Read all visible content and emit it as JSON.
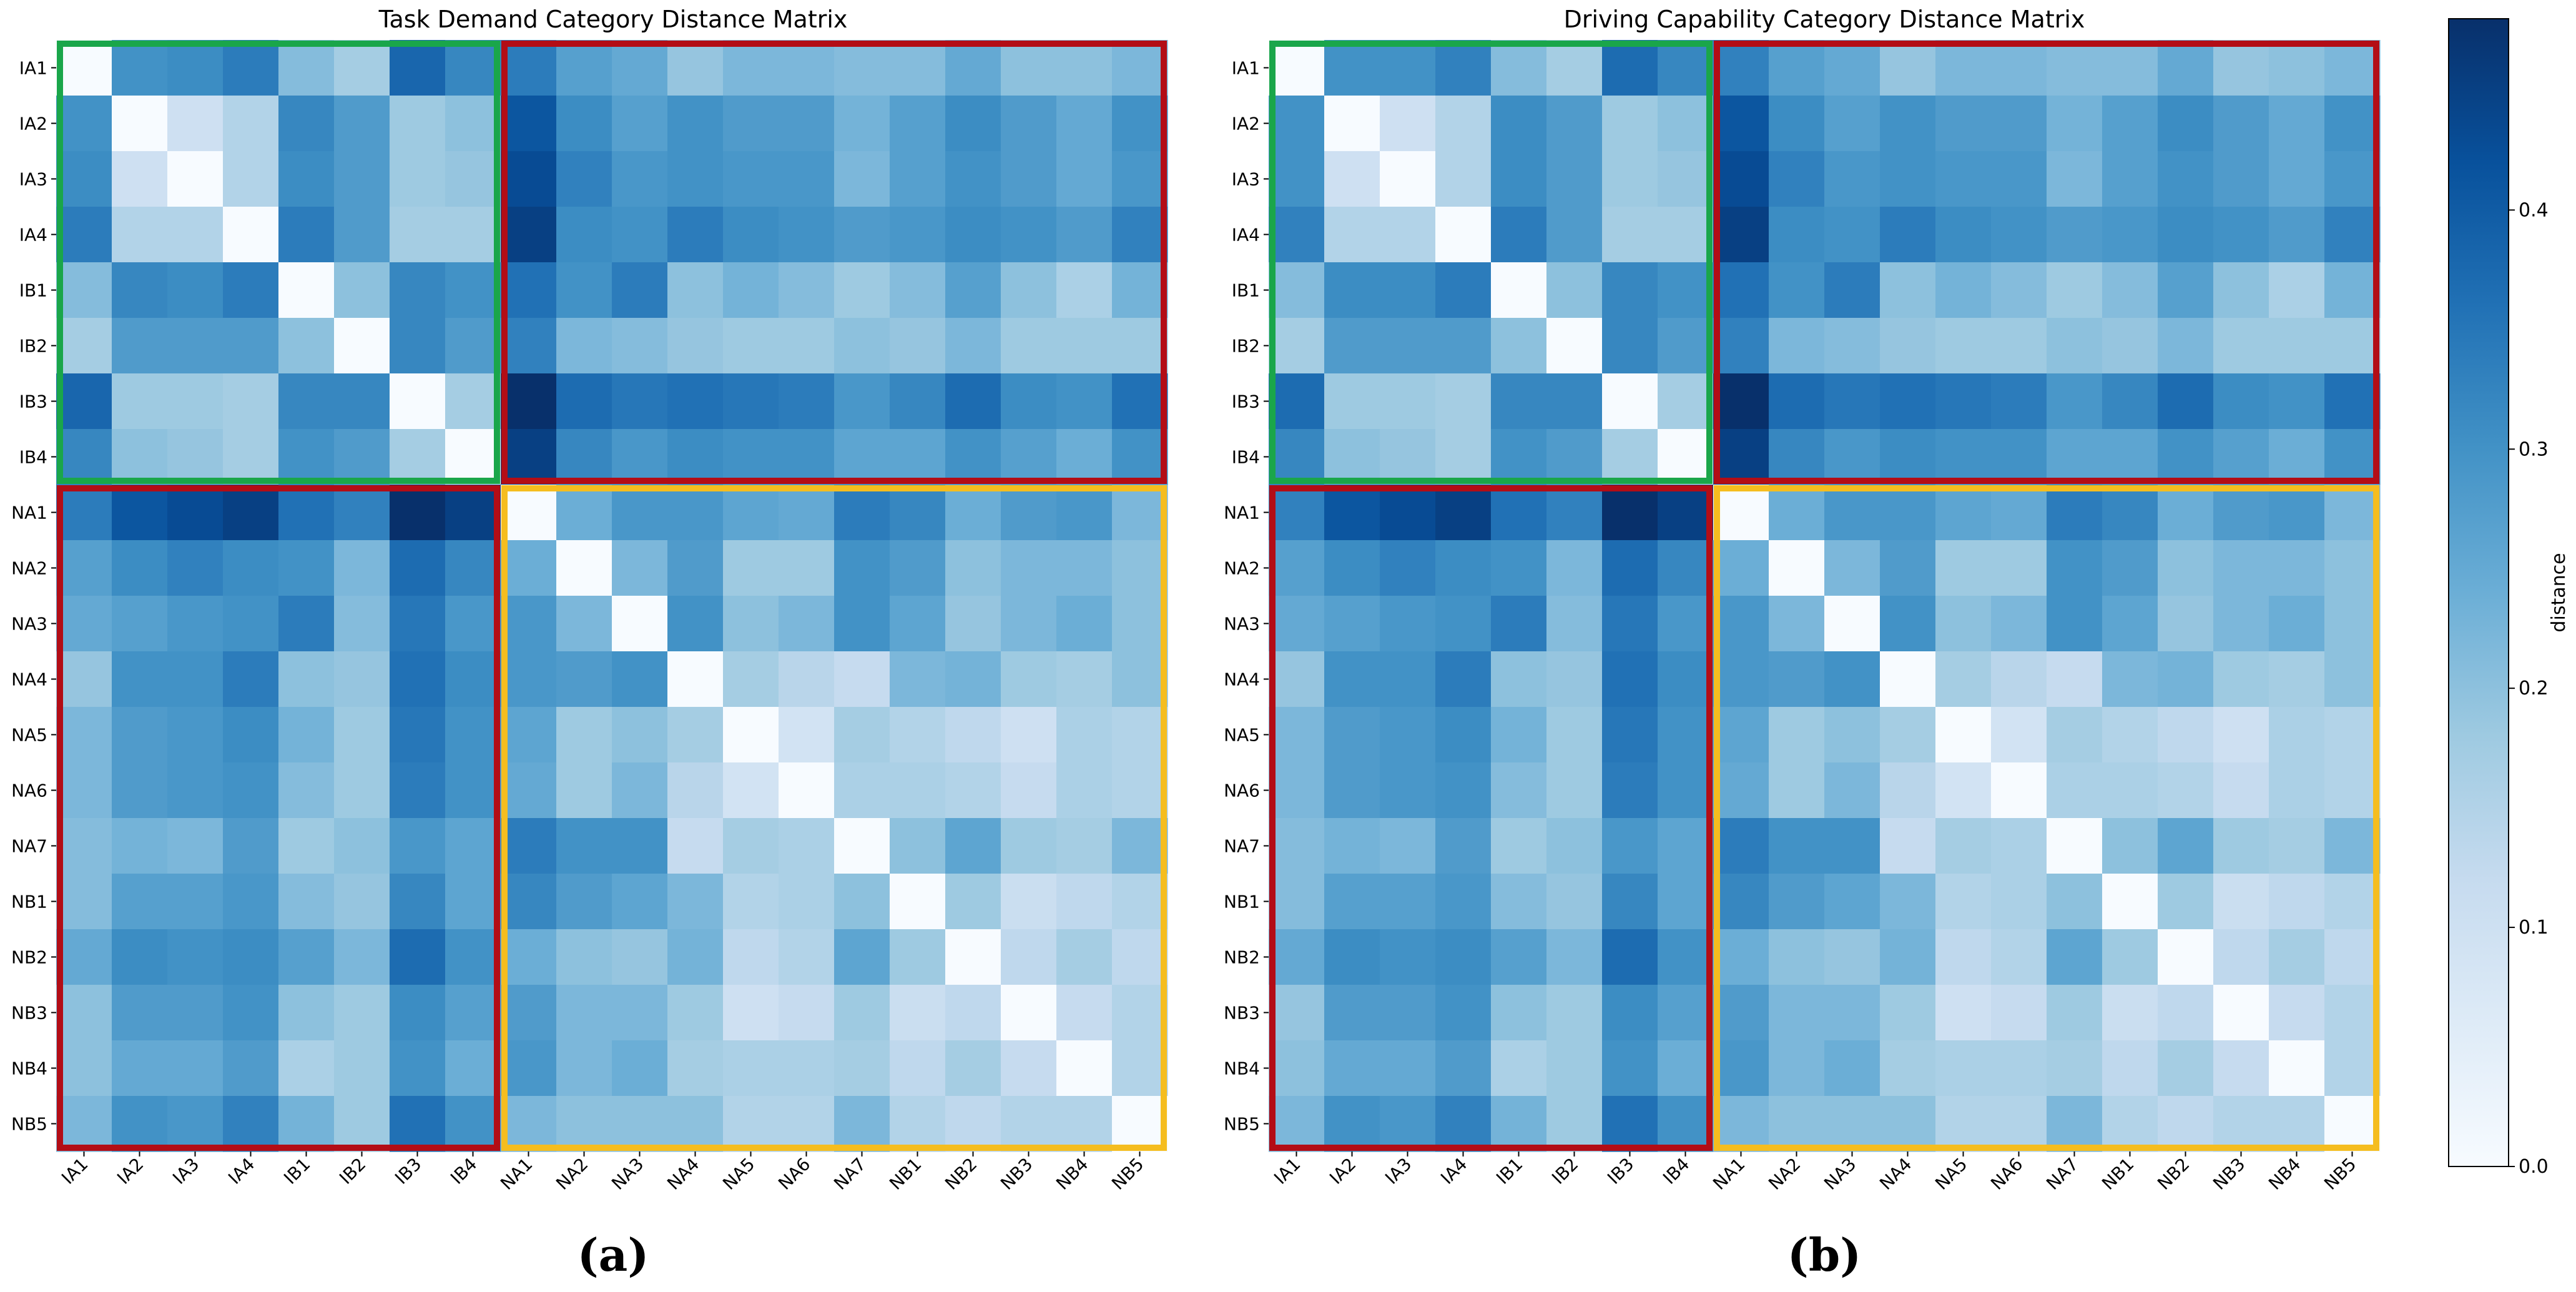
{
  "figure": {
    "panel_labels": [
      "(a)",
      "(b)"
    ],
    "colors": {
      "colormap": [
        "#f7fbff",
        "#deebf7",
        "#c6dbef",
        "#9ecae1",
        "#6baed6",
        "#4292c6",
        "#2171b5",
        "#08519c",
        "#08306b"
      ],
      "green_box": "#1aa64a",
      "red_box": "#b30d16",
      "yellow_box": "#f5bd1f"
    }
  },
  "colorbar": {
    "label": "distance",
    "min": 0.0,
    "max": 0.48,
    "ticks": [
      0.0,
      0.1,
      0.2,
      0.3,
      0.4
    ],
    "tick_labels": [
      "0.0",
      "0.1",
      "0.2",
      "0.3",
      "0.4"
    ]
  },
  "chart_data": [
    {
      "type": "heatmap",
      "title": "Task Demand Category Distance Matrix",
      "panel": "(a)",
      "labels": [
        "IA1",
        "IA2",
        "IA3",
        "IA4",
        "IB1",
        "IB2",
        "IB3",
        "IB4",
        "NA1",
        "NA2",
        "NA3",
        "NA4",
        "NA5",
        "NA6",
        "NA7",
        "NB1",
        "NB2",
        "NB3",
        "NB4",
        "NB5"
      ],
      "values": [
        [
          0.0,
          0.3,
          0.31,
          0.34,
          0.21,
          0.17,
          0.38,
          0.32,
          0.34,
          0.27,
          0.25,
          0.19,
          0.22,
          0.22,
          0.21,
          0.21,
          0.25,
          0.2,
          0.2,
          0.22
        ],
        [
          0.3,
          0.0,
          0.1,
          0.15,
          0.32,
          0.28,
          0.18,
          0.2,
          0.41,
          0.31,
          0.27,
          0.3,
          0.28,
          0.28,
          0.23,
          0.27,
          0.31,
          0.28,
          0.25,
          0.3
        ],
        [
          0.31,
          0.1,
          0.0,
          0.15,
          0.31,
          0.28,
          0.18,
          0.19,
          0.43,
          0.33,
          0.29,
          0.3,
          0.29,
          0.29,
          0.22,
          0.27,
          0.3,
          0.28,
          0.25,
          0.29
        ],
        [
          0.34,
          0.15,
          0.15,
          0.0,
          0.34,
          0.28,
          0.17,
          0.17,
          0.45,
          0.31,
          0.3,
          0.34,
          0.31,
          0.3,
          0.28,
          0.29,
          0.31,
          0.3,
          0.28,
          0.33
        ],
        [
          0.21,
          0.32,
          0.31,
          0.34,
          0.0,
          0.2,
          0.32,
          0.3,
          0.36,
          0.3,
          0.34,
          0.2,
          0.23,
          0.21,
          0.18,
          0.21,
          0.27,
          0.2,
          0.16,
          0.23
        ],
        [
          0.17,
          0.28,
          0.28,
          0.28,
          0.2,
          0.0,
          0.32,
          0.28,
          0.33,
          0.22,
          0.21,
          0.19,
          0.18,
          0.18,
          0.2,
          0.19,
          0.22,
          0.18,
          0.18,
          0.18
        ],
        [
          0.38,
          0.18,
          0.18,
          0.17,
          0.32,
          0.32,
          0.0,
          0.17,
          0.48,
          0.37,
          0.35,
          0.36,
          0.35,
          0.34,
          0.29,
          0.32,
          0.37,
          0.31,
          0.3,
          0.36
        ],
        [
          0.32,
          0.2,
          0.19,
          0.17,
          0.3,
          0.28,
          0.17,
          0.0,
          0.45,
          0.32,
          0.29,
          0.31,
          0.3,
          0.3,
          0.26,
          0.26,
          0.3,
          0.27,
          0.24,
          0.3
        ],
        [
          0.34,
          0.41,
          0.43,
          0.45,
          0.36,
          0.33,
          0.48,
          0.45,
          0.0,
          0.24,
          0.29,
          0.29,
          0.26,
          0.25,
          0.34,
          0.32,
          0.24,
          0.28,
          0.29,
          0.22
        ],
        [
          0.27,
          0.31,
          0.33,
          0.31,
          0.3,
          0.22,
          0.37,
          0.32,
          0.24,
          0.0,
          0.22,
          0.28,
          0.18,
          0.18,
          0.3,
          0.28,
          0.2,
          0.22,
          0.22,
          0.2
        ],
        [
          0.25,
          0.27,
          0.29,
          0.3,
          0.34,
          0.21,
          0.35,
          0.29,
          0.29,
          0.22,
          0.0,
          0.3,
          0.2,
          0.22,
          0.3,
          0.26,
          0.19,
          0.22,
          0.24,
          0.2
        ],
        [
          0.19,
          0.3,
          0.3,
          0.34,
          0.2,
          0.19,
          0.36,
          0.31,
          0.29,
          0.28,
          0.3,
          0.0,
          0.17,
          0.14,
          0.12,
          0.22,
          0.23,
          0.18,
          0.17,
          0.2
        ],
        [
          0.22,
          0.28,
          0.29,
          0.31,
          0.23,
          0.18,
          0.35,
          0.3,
          0.26,
          0.18,
          0.2,
          0.17,
          0.0,
          0.09,
          0.17,
          0.15,
          0.13,
          0.1,
          0.16,
          0.15
        ],
        [
          0.22,
          0.28,
          0.29,
          0.3,
          0.21,
          0.18,
          0.34,
          0.3,
          0.25,
          0.18,
          0.22,
          0.14,
          0.09,
          0.0,
          0.16,
          0.16,
          0.15,
          0.12,
          0.16,
          0.15
        ],
        [
          0.21,
          0.23,
          0.22,
          0.28,
          0.18,
          0.2,
          0.29,
          0.26,
          0.34,
          0.3,
          0.3,
          0.12,
          0.17,
          0.16,
          0.0,
          0.2,
          0.26,
          0.18,
          0.17,
          0.22
        ],
        [
          0.21,
          0.27,
          0.27,
          0.29,
          0.21,
          0.19,
          0.32,
          0.26,
          0.32,
          0.28,
          0.26,
          0.22,
          0.15,
          0.16,
          0.2,
          0.0,
          0.18,
          0.11,
          0.13,
          0.15
        ],
        [
          0.25,
          0.31,
          0.3,
          0.31,
          0.27,
          0.22,
          0.37,
          0.3,
          0.24,
          0.2,
          0.19,
          0.23,
          0.13,
          0.15,
          0.26,
          0.18,
          0.0,
          0.13,
          0.17,
          0.13
        ],
        [
          0.2,
          0.28,
          0.28,
          0.3,
          0.2,
          0.18,
          0.31,
          0.27,
          0.28,
          0.22,
          0.22,
          0.18,
          0.1,
          0.12,
          0.18,
          0.11,
          0.13,
          0.0,
          0.12,
          0.15
        ],
        [
          0.2,
          0.25,
          0.25,
          0.28,
          0.16,
          0.18,
          0.3,
          0.24,
          0.29,
          0.22,
          0.24,
          0.17,
          0.16,
          0.16,
          0.17,
          0.13,
          0.17,
          0.12,
          0.0,
          0.15
        ],
        [
          0.22,
          0.3,
          0.29,
          0.33,
          0.23,
          0.18,
          0.36,
          0.3,
          0.22,
          0.2,
          0.2,
          0.2,
          0.15,
          0.15,
          0.22,
          0.15,
          0.13,
          0.15,
          0.15,
          0.0
        ]
      ]
    },
    {
      "type": "heatmap",
      "title": "Driving Capability Category Distance Matrix",
      "panel": "(b)",
      "labels": [
        "IA1",
        "IA2",
        "IA3",
        "IA4",
        "IB1",
        "IB2",
        "IB3",
        "IB4",
        "NA1",
        "NA2",
        "NA3",
        "NA4",
        "NA5",
        "NA6",
        "NA7",
        "NB1",
        "NB2",
        "NB3",
        "NB4",
        "NB5"
      ],
      "values": [
        [
          0.0,
          0.3,
          0.3,
          0.33,
          0.21,
          0.17,
          0.37,
          0.32,
          0.33,
          0.27,
          0.25,
          0.19,
          0.22,
          0.22,
          0.21,
          0.21,
          0.25,
          0.19,
          0.2,
          0.22
        ],
        [
          0.3,
          0.0,
          0.1,
          0.15,
          0.31,
          0.28,
          0.18,
          0.2,
          0.41,
          0.31,
          0.27,
          0.3,
          0.28,
          0.28,
          0.23,
          0.27,
          0.31,
          0.28,
          0.25,
          0.3
        ],
        [
          0.3,
          0.1,
          0.0,
          0.15,
          0.31,
          0.28,
          0.18,
          0.19,
          0.43,
          0.33,
          0.29,
          0.3,
          0.29,
          0.29,
          0.22,
          0.27,
          0.3,
          0.28,
          0.25,
          0.29
        ],
        [
          0.33,
          0.15,
          0.15,
          0.0,
          0.34,
          0.28,
          0.17,
          0.17,
          0.45,
          0.31,
          0.3,
          0.34,
          0.31,
          0.3,
          0.28,
          0.29,
          0.31,
          0.3,
          0.28,
          0.33
        ],
        [
          0.21,
          0.31,
          0.31,
          0.34,
          0.0,
          0.2,
          0.32,
          0.3,
          0.36,
          0.3,
          0.34,
          0.2,
          0.23,
          0.21,
          0.18,
          0.21,
          0.27,
          0.2,
          0.16,
          0.23
        ],
        [
          0.17,
          0.28,
          0.28,
          0.28,
          0.2,
          0.0,
          0.32,
          0.28,
          0.33,
          0.22,
          0.21,
          0.19,
          0.18,
          0.18,
          0.2,
          0.19,
          0.22,
          0.18,
          0.18,
          0.18
        ],
        [
          0.37,
          0.18,
          0.18,
          0.17,
          0.32,
          0.32,
          0.0,
          0.17,
          0.48,
          0.37,
          0.35,
          0.36,
          0.35,
          0.34,
          0.29,
          0.32,
          0.37,
          0.31,
          0.3,
          0.36
        ],
        [
          0.32,
          0.2,
          0.19,
          0.17,
          0.3,
          0.28,
          0.17,
          0.0,
          0.45,
          0.32,
          0.29,
          0.31,
          0.3,
          0.3,
          0.26,
          0.26,
          0.3,
          0.27,
          0.24,
          0.3
        ],
        [
          0.33,
          0.41,
          0.43,
          0.45,
          0.36,
          0.33,
          0.48,
          0.45,
          0.0,
          0.24,
          0.29,
          0.29,
          0.26,
          0.25,
          0.34,
          0.32,
          0.24,
          0.28,
          0.29,
          0.22
        ],
        [
          0.27,
          0.31,
          0.33,
          0.31,
          0.3,
          0.22,
          0.37,
          0.32,
          0.24,
          0.0,
          0.22,
          0.28,
          0.18,
          0.18,
          0.3,
          0.28,
          0.2,
          0.22,
          0.22,
          0.2
        ],
        [
          0.25,
          0.27,
          0.29,
          0.3,
          0.34,
          0.21,
          0.35,
          0.29,
          0.29,
          0.22,
          0.0,
          0.3,
          0.2,
          0.22,
          0.3,
          0.26,
          0.19,
          0.22,
          0.24,
          0.2
        ],
        [
          0.19,
          0.3,
          0.3,
          0.34,
          0.2,
          0.19,
          0.36,
          0.31,
          0.29,
          0.28,
          0.3,
          0.0,
          0.17,
          0.14,
          0.12,
          0.22,
          0.23,
          0.18,
          0.17,
          0.2
        ],
        [
          0.22,
          0.28,
          0.29,
          0.31,
          0.23,
          0.18,
          0.35,
          0.3,
          0.26,
          0.18,
          0.2,
          0.17,
          0.0,
          0.09,
          0.17,
          0.15,
          0.13,
          0.1,
          0.16,
          0.15
        ],
        [
          0.22,
          0.28,
          0.29,
          0.3,
          0.21,
          0.18,
          0.34,
          0.3,
          0.25,
          0.18,
          0.22,
          0.14,
          0.09,
          0.0,
          0.16,
          0.16,
          0.15,
          0.12,
          0.16,
          0.15
        ],
        [
          0.21,
          0.23,
          0.22,
          0.28,
          0.18,
          0.2,
          0.29,
          0.26,
          0.34,
          0.3,
          0.3,
          0.12,
          0.17,
          0.16,
          0.0,
          0.2,
          0.26,
          0.18,
          0.17,
          0.22
        ],
        [
          0.21,
          0.27,
          0.27,
          0.29,
          0.21,
          0.19,
          0.32,
          0.26,
          0.32,
          0.28,
          0.26,
          0.22,
          0.15,
          0.16,
          0.2,
          0.0,
          0.18,
          0.11,
          0.13,
          0.15
        ],
        [
          0.25,
          0.31,
          0.3,
          0.31,
          0.27,
          0.22,
          0.37,
          0.3,
          0.24,
          0.2,
          0.19,
          0.23,
          0.13,
          0.15,
          0.26,
          0.18,
          0.0,
          0.13,
          0.17,
          0.13
        ],
        [
          0.19,
          0.28,
          0.28,
          0.3,
          0.2,
          0.18,
          0.31,
          0.27,
          0.28,
          0.22,
          0.22,
          0.18,
          0.1,
          0.12,
          0.18,
          0.11,
          0.13,
          0.0,
          0.12,
          0.15
        ],
        [
          0.2,
          0.25,
          0.25,
          0.28,
          0.16,
          0.18,
          0.3,
          0.24,
          0.29,
          0.22,
          0.24,
          0.17,
          0.16,
          0.16,
          0.17,
          0.13,
          0.17,
          0.12,
          0.0,
          0.15
        ],
        [
          0.22,
          0.3,
          0.29,
          0.33,
          0.23,
          0.18,
          0.36,
          0.3,
          0.22,
          0.2,
          0.2,
          0.2,
          0.15,
          0.15,
          0.22,
          0.15,
          0.13,
          0.15,
          0.15,
          0.0
        ]
      ]
    }
  ]
}
